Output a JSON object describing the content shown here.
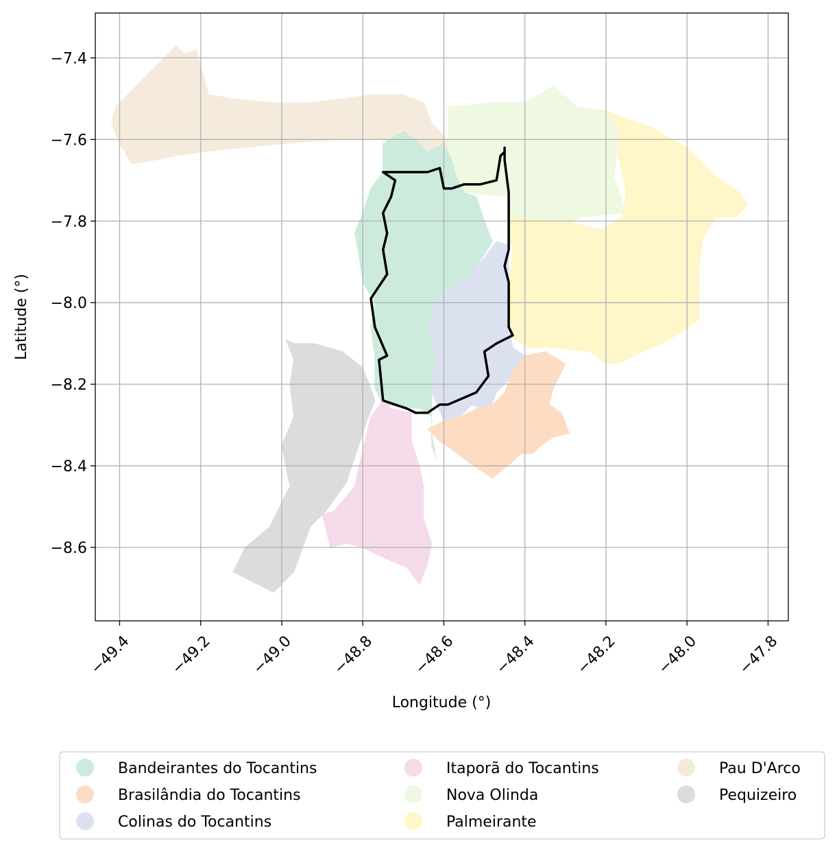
{
  "map": {
    "xlabel": "Longitude (°)",
    "ylabel": "Latitude (°)",
    "x_ticks": [
      {
        "value": -49.4,
        "label": "−49.4"
      },
      {
        "value": -49.2,
        "label": "−49.2"
      },
      {
        "value": -49.0,
        "label": "−49.0"
      },
      {
        "value": -48.8,
        "label": "−48.8"
      },
      {
        "value": -48.6,
        "label": "−48.6"
      },
      {
        "value": -48.4,
        "label": "−48.4"
      },
      {
        "value": -48.2,
        "label": "−48.2"
      },
      {
        "value": -48.0,
        "label": "−48.0"
      },
      {
        "value": -47.8,
        "label": "−47.8"
      }
    ],
    "y_ticks": [
      {
        "value": -7.4,
        "label": "−7.4"
      },
      {
        "value": -7.6,
        "label": "−7.6"
      },
      {
        "value": -7.8,
        "label": "−7.8"
      },
      {
        "value": -8.0,
        "label": "−8.0"
      },
      {
        "value": -8.2,
        "label": "−8.2"
      },
      {
        "value": -8.4,
        "label": "−8.4"
      },
      {
        "value": -8.6,
        "label": "−8.6"
      }
    ],
    "xlim": [
      -49.46,
      -47.75
    ],
    "ylim": [
      -8.78,
      -7.29
    ],
    "grid": true,
    "highlight_outline_color": "#000000",
    "municipalities": [
      {
        "name": "Pau D'Arco",
        "color": "#f5ebdc",
        "polygon": [
          [
            -49.41,
            -7.52
          ],
          [
            -49.35,
            -7.46
          ],
          [
            -49.29,
            -7.4
          ],
          [
            -49.26,
            -7.37
          ],
          [
            -49.24,
            -7.39
          ],
          [
            -49.21,
            -7.38
          ],
          [
            -49.2,
            -7.42
          ],
          [
            -49.18,
            -7.49
          ],
          [
            -49.12,
            -7.5
          ],
          [
            -49.02,
            -7.51
          ],
          [
            -48.93,
            -7.51
          ],
          [
            -48.85,
            -7.5
          ],
          [
            -48.78,
            -7.49
          ],
          [
            -48.7,
            -7.49
          ],
          [
            -48.65,
            -7.51
          ],
          [
            -48.63,
            -7.56
          ],
          [
            -48.6,
            -7.59
          ],
          [
            -48.58,
            -7.62
          ],
          [
            -48.58,
            -7.69
          ],
          [
            -48.6,
            -7.71
          ],
          [
            -48.64,
            -7.68
          ],
          [
            -48.66,
            -7.63
          ],
          [
            -48.71,
            -7.61
          ],
          [
            -48.76,
            -7.6
          ],
          [
            -48.86,
            -7.6
          ],
          [
            -48.99,
            -7.61
          ],
          [
            -49.1,
            -7.62
          ],
          [
            -49.19,
            -7.63
          ],
          [
            -49.26,
            -7.64
          ],
          [
            -49.31,
            -7.65
          ],
          [
            -49.37,
            -7.66
          ],
          [
            -49.4,
            -7.61
          ],
          [
            -49.42,
            -7.56
          ]
        ]
      },
      {
        "name": "Nova Olinda",
        "color": "#eff8e0",
        "polygon": [
          [
            -48.59,
            -7.52
          ],
          [
            -48.48,
            -7.51
          ],
          [
            -48.4,
            -7.51
          ],
          [
            -48.33,
            -7.47
          ],
          [
            -48.27,
            -7.52
          ],
          [
            -48.2,
            -7.53
          ],
          [
            -48.16,
            -7.56
          ],
          [
            -48.17,
            -7.61
          ],
          [
            -48.18,
            -7.69
          ],
          [
            -48.16,
            -7.75
          ],
          [
            -48.15,
            -7.78
          ],
          [
            -48.26,
            -7.79
          ],
          [
            -48.31,
            -7.82
          ],
          [
            -48.44,
            -7.86
          ],
          [
            -48.44,
            -7.74
          ],
          [
            -48.55,
            -7.73
          ],
          [
            -48.59,
            -7.69
          ],
          [
            -48.59,
            -7.6
          ]
        ]
      },
      {
        "name": "Palmeirante",
        "color": "#fff6c9",
        "polygon": [
          [
            -48.2,
            -7.53
          ],
          [
            -48.09,
            -7.57
          ],
          [
            -48.0,
            -7.62
          ],
          [
            -47.93,
            -7.69
          ],
          [
            -47.87,
            -7.73
          ],
          [
            -47.85,
            -7.76
          ],
          [
            -47.88,
            -7.79
          ],
          [
            -47.93,
            -7.79
          ],
          [
            -47.96,
            -7.84
          ],
          [
            -47.97,
            -7.91
          ],
          [
            -47.97,
            -7.97
          ],
          [
            -47.97,
            -8.04
          ],
          [
            -48.01,
            -8.07
          ],
          [
            -48.06,
            -8.1
          ],
          [
            -48.11,
            -8.12
          ],
          [
            -48.17,
            -8.15
          ],
          [
            -48.2,
            -8.15
          ],
          [
            -48.24,
            -8.12
          ],
          [
            -48.33,
            -8.11
          ],
          [
            -48.39,
            -8.11
          ],
          [
            -48.44,
            -8.08
          ],
          [
            -48.44,
            -7.97
          ],
          [
            -48.43,
            -7.87
          ],
          [
            -48.44,
            -7.79
          ],
          [
            -48.31,
            -7.8
          ],
          [
            -48.21,
            -7.82
          ],
          [
            -48.16,
            -7.79
          ],
          [
            -48.15,
            -7.73
          ],
          [
            -48.17,
            -7.64
          ],
          [
            -48.17,
            -7.57
          ]
        ]
      },
      {
        "name": "Bandeirantes do Tocantins",
        "color": "#cdebdc",
        "polygon": [
          [
            -48.7,
            -7.58
          ],
          [
            -48.75,
            -7.61
          ],
          [
            -48.75,
            -7.68
          ],
          [
            -48.78,
            -7.72
          ],
          [
            -48.8,
            -7.78
          ],
          [
            -48.82,
            -7.83
          ],
          [
            -48.81,
            -7.88
          ],
          [
            -48.8,
            -7.95
          ],
          [
            -48.77,
            -8.0
          ],
          [
            -48.78,
            -8.06
          ],
          [
            -48.77,
            -8.13
          ],
          [
            -48.77,
            -8.21
          ],
          [
            -48.75,
            -8.25
          ],
          [
            -48.66,
            -8.26
          ],
          [
            -48.63,
            -8.28
          ],
          [
            -48.63,
            -8.35
          ],
          [
            -48.62,
            -8.38
          ],
          [
            -48.63,
            -8.32
          ],
          [
            -48.63,
            -8.2
          ],
          [
            -48.61,
            -8.13
          ],
          [
            -48.6,
            -8.1
          ],
          [
            -48.61,
            -8.05
          ],
          [
            -48.6,
            -8.0
          ],
          [
            -48.57,
            -7.96
          ],
          [
            -48.53,
            -7.93
          ],
          [
            -48.48,
            -7.85
          ],
          [
            -48.5,
            -7.8
          ],
          [
            -48.52,
            -7.74
          ],
          [
            -48.55,
            -7.73
          ],
          [
            -48.57,
            -7.69
          ],
          [
            -48.58,
            -7.65
          ],
          [
            -48.6,
            -7.61
          ],
          [
            -48.64,
            -7.63
          ],
          [
            -48.67,
            -7.6
          ]
        ]
      },
      {
        "name": "Colinas do Tocantins",
        "color": "#dce1f0",
        "polygon": [
          [
            -48.53,
            -7.93
          ],
          [
            -48.47,
            -7.85
          ],
          [
            -48.44,
            -7.86
          ],
          [
            -48.44,
            -7.96
          ],
          [
            -48.44,
            -8.06
          ],
          [
            -48.43,
            -8.11
          ],
          [
            -48.4,
            -8.13
          ],
          [
            -48.41,
            -8.16
          ],
          [
            -48.44,
            -8.19
          ],
          [
            -48.47,
            -8.22
          ],
          [
            -48.49,
            -8.27
          ],
          [
            -48.53,
            -8.25
          ],
          [
            -48.56,
            -8.28
          ],
          [
            -48.6,
            -8.29
          ],
          [
            -48.63,
            -8.22
          ],
          [
            -48.62,
            -8.13
          ],
          [
            -48.64,
            -8.06
          ],
          [
            -48.62,
            -8.0
          ],
          [
            -48.58,
            -7.96
          ]
        ]
      },
      {
        "name": "Brasilândia do Tocantins",
        "color": "#fddcc4",
        "polygon": [
          [
            -48.4,
            -8.13
          ],
          [
            -48.35,
            -8.12
          ],
          [
            -48.3,
            -8.15
          ],
          [
            -48.33,
            -8.21
          ],
          [
            -48.34,
            -8.25
          ],
          [
            -48.31,
            -8.27
          ],
          [
            -48.29,
            -8.32
          ],
          [
            -48.33,
            -8.33
          ],
          [
            -48.36,
            -8.35
          ],
          [
            -48.38,
            -8.37
          ],
          [
            -48.41,
            -8.37
          ],
          [
            -48.43,
            -8.39
          ],
          [
            -48.48,
            -8.43
          ],
          [
            -48.54,
            -8.39
          ],
          [
            -48.58,
            -8.36
          ],
          [
            -48.61,
            -8.34
          ],
          [
            -48.64,
            -8.31
          ],
          [
            -48.6,
            -8.29
          ],
          [
            -48.56,
            -8.28
          ],
          [
            -48.52,
            -8.26
          ],
          [
            -48.48,
            -8.25
          ],
          [
            -48.45,
            -8.22
          ],
          [
            -48.43,
            -8.17
          ]
        ]
      },
      {
        "name": "Itaporã do Tocantins",
        "color": "#f5dbe9",
        "polygon": [
          [
            -48.75,
            -8.24
          ],
          [
            -48.78,
            -8.28
          ],
          [
            -48.8,
            -8.36
          ],
          [
            -48.82,
            -8.45
          ],
          [
            -48.87,
            -8.51
          ],
          [
            -48.9,
            -8.52
          ],
          [
            -48.88,
            -8.6
          ],
          [
            -48.84,
            -8.59
          ],
          [
            -48.8,
            -8.6
          ],
          [
            -48.76,
            -8.62
          ],
          [
            -48.69,
            -8.65
          ],
          [
            -48.66,
            -8.69
          ],
          [
            -48.64,
            -8.64
          ],
          [
            -48.63,
            -8.59
          ],
          [
            -48.65,
            -8.53
          ],
          [
            -48.65,
            -8.45
          ],
          [
            -48.66,
            -8.4
          ],
          [
            -48.68,
            -8.34
          ],
          [
            -48.68,
            -8.27
          ],
          [
            -48.73,
            -8.26
          ]
        ]
      },
      {
        "name": "Pequizeiro",
        "color": "#dcdcdc",
        "polygon": [
          [
            -48.99,
            -8.09
          ],
          [
            -48.97,
            -8.1
          ],
          [
            -48.92,
            -8.1
          ],
          [
            -48.85,
            -8.12
          ],
          [
            -48.8,
            -8.16
          ],
          [
            -48.78,
            -8.21
          ],
          [
            -48.77,
            -8.24
          ],
          [
            -48.79,
            -8.29
          ],
          [
            -48.81,
            -8.35
          ],
          [
            -48.84,
            -8.44
          ],
          [
            -48.89,
            -8.51
          ],
          [
            -48.93,
            -8.55
          ],
          [
            -48.97,
            -8.66
          ],
          [
            -49.02,
            -8.71
          ],
          [
            -49.06,
            -8.69
          ],
          [
            -49.12,
            -8.66
          ],
          [
            -49.09,
            -8.6
          ],
          [
            -49.03,
            -8.55
          ],
          [
            -48.98,
            -8.45
          ],
          [
            -49.0,
            -8.35
          ],
          [
            -48.97,
            -8.28
          ],
          [
            -48.98,
            -8.2
          ],
          [
            -48.97,
            -8.14
          ]
        ]
      }
    ],
    "highlight_outline": [
      [
        -48.75,
        -7.68
      ],
      [
        -48.64,
        -7.68
      ],
      [
        -48.61,
        -7.67
      ],
      [
        -48.6,
        -7.72
      ],
      [
        -48.58,
        -7.72
      ],
      [
        -48.55,
        -7.71
      ],
      [
        -48.53,
        -7.71
      ],
      [
        -48.51,
        -7.71
      ],
      [
        -48.47,
        -7.7
      ],
      [
        -48.46,
        -7.64
      ],
      [
        -48.45,
        -7.63
      ],
      [
        -48.45,
        -7.62
      ],
      [
        -48.45,
        -7.65
      ],
      [
        -48.44,
        -7.73
      ],
      [
        -48.44,
        -7.87
      ],
      [
        -48.45,
        -7.91
      ],
      [
        -48.44,
        -7.95
      ],
      [
        -48.44,
        -8.01
      ],
      [
        -48.44,
        -8.06
      ],
      [
        -48.43,
        -8.08
      ],
      [
        -48.47,
        -8.1
      ],
      [
        -48.5,
        -8.12
      ],
      [
        -48.49,
        -8.18
      ],
      [
        -48.52,
        -8.22
      ],
      [
        -48.59,
        -8.25
      ],
      [
        -48.61,
        -8.25
      ],
      [
        -48.64,
        -8.27
      ],
      [
        -48.67,
        -8.27
      ],
      [
        -48.69,
        -8.26
      ],
      [
        -48.75,
        -8.24
      ],
      [
        -48.76,
        -8.14
      ],
      [
        -48.74,
        -8.13
      ],
      [
        -48.77,
        -8.06
      ],
      [
        -48.78,
        -7.99
      ],
      [
        -48.76,
        -7.96
      ],
      [
        -48.74,
        -7.93
      ],
      [
        -48.75,
        -7.87
      ],
      [
        -48.74,
        -7.83
      ],
      [
        -48.75,
        -7.78
      ],
      [
        -48.73,
        -7.74
      ],
      [
        -48.72,
        -7.7
      ]
    ],
    "legend": [
      {
        "name": "Bandeirantes do Tocantins",
        "color": "#cdebdc"
      },
      {
        "name": "Brasilândia do Tocantins",
        "color": "#fddcc4"
      },
      {
        "name": "Colinas do Tocantins",
        "color": "#dce1f0"
      },
      {
        "name": "Itaporã do Tocantins",
        "color": "#f5dbe9"
      },
      {
        "name": "Nova Olinda",
        "color": "#eff8e0"
      },
      {
        "name": "Palmeirante",
        "color": "#fff6c9"
      },
      {
        "name": "Pau D'Arco",
        "color": "#f5ebdc"
      },
      {
        "name": "Pequizeiro",
        "color": "#dcdcdc"
      }
    ]
  }
}
